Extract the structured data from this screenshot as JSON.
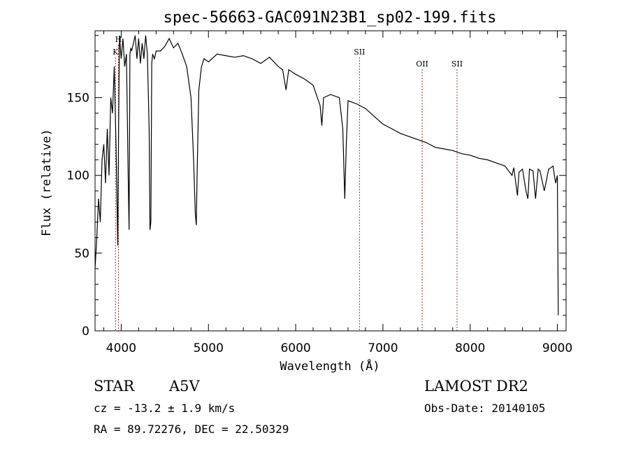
{
  "chart_data": {
    "type": "line",
    "title": "spec-56663-GAC091N23B1_sp02-199.fits",
    "xlabel": "Wavelength (Å)",
    "ylabel": "Flux (relative)",
    "xlim": [
      3700,
      9100
    ],
    "ylim": [
      0,
      193
    ],
    "xticks": [
      4000,
      5000,
      6000,
      7000,
      8000,
      9000
    ],
    "yticks": [
      0,
      50,
      100,
      150
    ],
    "grid": false,
    "series": [
      {
        "x": [
          3700,
          3720,
          3740,
          3760,
          3780,
          3800,
          3820,
          3840,
          3860,
          3880,
          3900,
          3920,
          3940,
          3960,
          3970,
          3980,
          4000,
          4020,
          4040,
          4060,
          4080,
          4090,
          4100,
          4110,
          4120,
          4140,
          4160,
          4180,
          4200,
          4220,
          4240,
          4260,
          4280,
          4300,
          4320,
          4330,
          4340,
          4350,
          4360,
          4380,
          4400,
          4450,
          4500,
          4550,
          4600,
          4650,
          4700,
          4750,
          4800,
          4830,
          4850,
          4861,
          4870,
          4890,
          4920,
          4950,
          5000,
          5100,
          5200,
          5300,
          5400,
          5500,
          5600,
          5700,
          5800,
          5850,
          5890,
          5920,
          6000,
          6100,
          6200,
          6280,
          6300,
          6320,
          6400,
          6500,
          6540,
          6563,
          6580,
          6600,
          6700,
          6800,
          6900,
          7000,
          7100,
          7200,
          7300,
          7400,
          7500,
          7600,
          7700,
          7800,
          7900,
          8000,
          8100,
          8200,
          8300,
          8400,
          8480,
          8500,
          8542,
          8560,
          8600,
          8640,
          8662,
          8680,
          8720,
          8750,
          8780,
          8800,
          8850,
          8900,
          8950,
          8980,
          9000,
          9010
        ],
        "values": [
          40,
          60,
          85,
          70,
          110,
          120,
          95,
          130,
          100,
          150,
          140,
          170,
          120,
          55,
          130,
          190,
          175,
          188,
          170,
          178,
          100,
          65,
          178,
          182,
          180,
          185,
          190,
          175,
          188,
          172,
          185,
          175,
          190,
          178,
          130,
          65,
          70,
          172,
          178,
          175,
          180,
          180,
          183,
          188,
          182,
          185,
          178,
          170,
          150,
          110,
          75,
          68,
          100,
          155,
          170,
          175,
          173,
          178,
          177,
          176,
          177,
          175,
          172,
          176,
          170,
          168,
          155,
          168,
          165,
          162,
          158,
          145,
          132,
          150,
          152,
          150,
          130,
          85,
          120,
          148,
          146,
          143,
          138,
          133,
          130,
          127,
          125,
          123,
          121,
          118,
          117,
          116,
          114,
          113,
          111,
          110,
          108,
          106,
          100,
          105,
          87,
          102,
          104,
          90,
          85,
          104,
          103,
          85,
          104,
          103,
          90,
          104,
          106,
          95,
          100,
          10
        ]
      }
    ],
    "annotations": [
      {
        "label": "H",
        "x": 3968
      },
      {
        "label": "K",
        "x": 3934
      },
      {
        "label": "SII",
        "x": 6731
      },
      {
        "label": "OII",
        "x": 7450
      },
      {
        "label": "SII",
        "x": 7850
      }
    ]
  },
  "info": {
    "object_class": "STAR",
    "subclass": "A5V",
    "survey": "LAMOST DR2",
    "velocity": "cz = -13.2 ± 1.9 km/s",
    "obs_date": "Obs-Date: 20140105",
    "coords": "RA =  89.72276, DEC =  22.50329"
  }
}
